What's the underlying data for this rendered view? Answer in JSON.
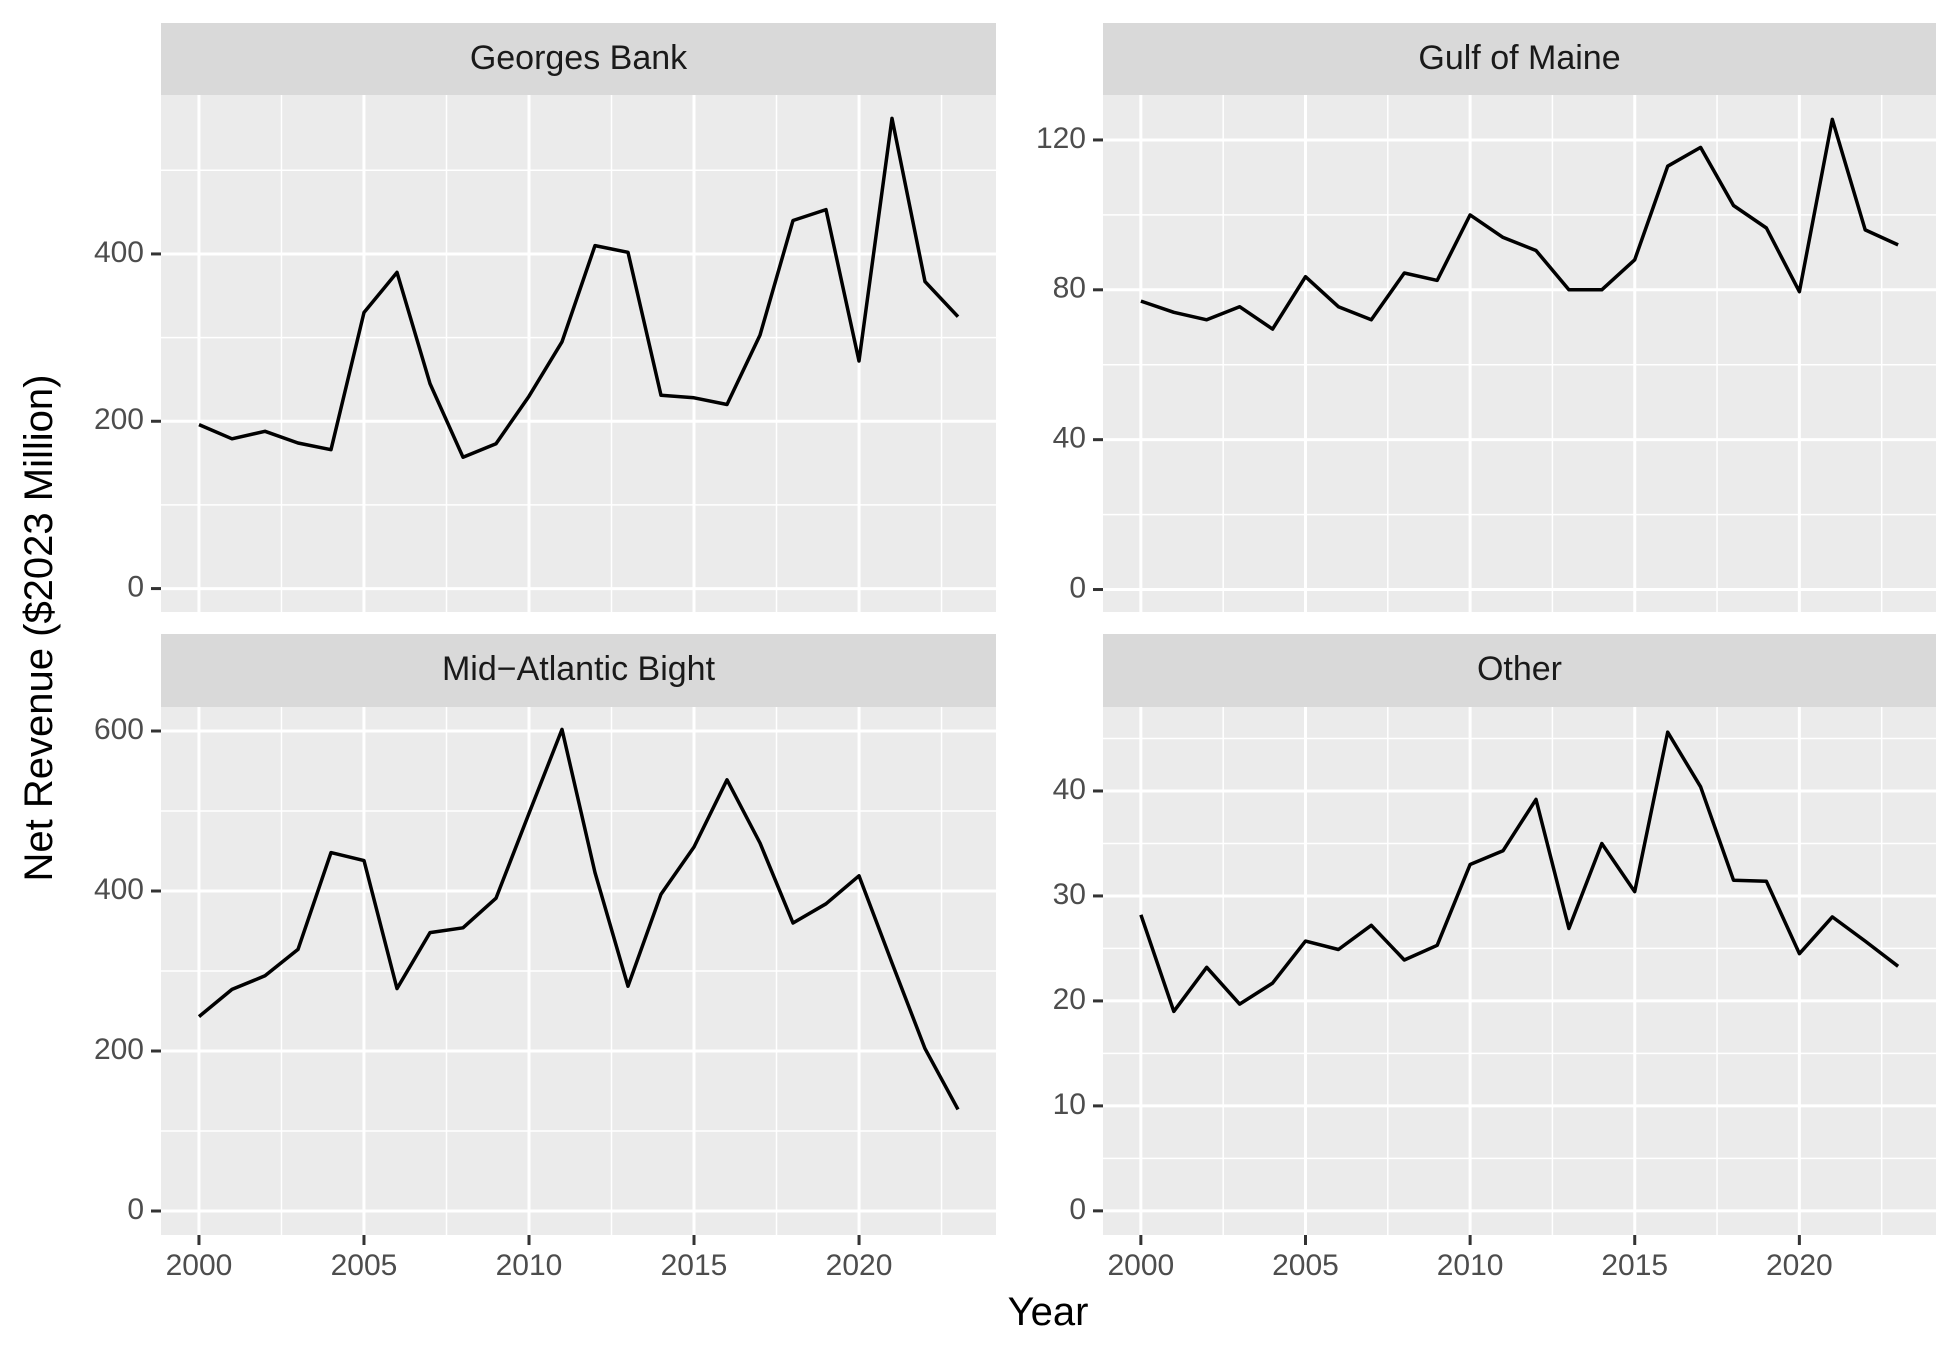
{
  "chart_data": {
    "type": "line",
    "facet": "wrap",
    "xlabel": "Year",
    "ylabel": "Net Revenue ($2023 Million)",
    "x_ticks": [
      2000,
      2005,
      2010,
      2015,
      2020
    ],
    "x": [
      2000,
      2001,
      2002,
      2003,
      2004,
      2005,
      2006,
      2007,
      2008,
      2009,
      2010,
      2011,
      2012,
      2013,
      2014,
      2015,
      2016,
      2017,
      2018,
      2019,
      2020,
      2021,
      2022,
      2023
    ],
    "grid": true,
    "panels": [
      {
        "title": "Georges Bank",
        "y_ticks": [
          0,
          200,
          400
        ],
        "ylim": [
          -28,
          590
        ],
        "values": [
          196,
          179,
          188,
          174,
          166,
          330,
          378,
          245,
          157,
          173,
          230,
          295,
          410,
          402,
          231,
          228,
          220,
          303,
          440,
          453,
          272,
          562,
          367,
          325
        ]
      },
      {
        "title": "Gulf of Maine",
        "y_ticks": [
          0,
          40,
          80,
          120
        ],
        "ylim": [
          -6,
          132
        ],
        "values": [
          77,
          74,
          72,
          75.5,
          69.5,
          83.5,
          75.5,
          72,
          84.5,
          82.5,
          100,
          94,
          90.5,
          80,
          80,
          88,
          113,
          118,
          102.5,
          96.5,
          79.5,
          125.5,
          96,
          92
        ]
      },
      {
        "title": "Mid−Atlantic Bight",
        "y_ticks": [
          0,
          200,
          400,
          600
        ],
        "ylim": [
          -30,
          630
        ],
        "values": [
          243,
          277,
          294,
          327,
          448,
          438,
          278,
          348,
          354,
          391,
          497,
          602,
          423,
          281,
          396,
          455,
          539,
          460,
          360,
          384,
          419,
          310,
          203,
          127
        ]
      },
      {
        "title": "Other",
        "y_ticks": [
          0,
          10,
          20,
          30,
          40
        ],
        "ylim": [
          -2.3,
          48
        ],
        "values": [
          28.2,
          19.0,
          23.2,
          19.7,
          21.7,
          25.7,
          24.9,
          27.2,
          23.9,
          25.3,
          33.0,
          34.3,
          39.2,
          26.9,
          35.0,
          30.4,
          45.6,
          40.4,
          31.5,
          31.4,
          24.5,
          28.0,
          25.7,
          23.3
        ]
      }
    ]
  }
}
